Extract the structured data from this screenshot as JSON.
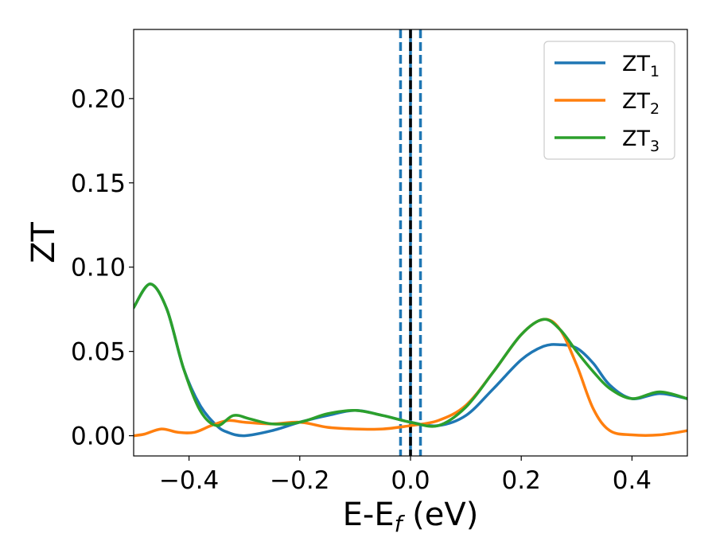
{
  "chart_data": {
    "type": "line",
    "title": "",
    "xlabel": "E-E",
    "xlabel_sub": "f",
    "xlabel_unit": " (eV)",
    "ylabel": "ZT",
    "xlim": [
      -0.5,
      0.5
    ],
    "ylim": [
      -0.012,
      0.241
    ],
    "x_ticks": [
      -0.4,
      -0.2,
      0.0,
      0.2,
      0.4
    ],
    "x_tick_labels": [
      "−0.4",
      "−0.2",
      "0.0",
      "0.2",
      "0.4"
    ],
    "y_ticks": [
      0.0,
      0.05,
      0.1,
      0.15,
      0.2
    ],
    "y_tick_labels": [
      "0.00",
      "0.05",
      "0.10",
      "0.15",
      "0.20"
    ],
    "grid": false,
    "legend_position": "top-right",
    "series": [
      {
        "name": "ZT",
        "subscript": "1",
        "color": "#1f77b4",
        "x": [
          -0.5,
          -0.47,
          -0.44,
          -0.41,
          -0.38,
          -0.35,
          -0.33,
          -0.3,
          -0.25,
          -0.2,
          -0.15,
          -0.1,
          -0.05,
          0.0,
          0.05,
          0.1,
          0.15,
          0.2,
          0.24,
          0.27,
          0.3,
          0.33,
          0.36,
          0.4,
          0.45,
          0.5
        ],
        "y": [
          0.076,
          0.09,
          0.075,
          0.04,
          0.018,
          0.006,
          0.002,
          0.0,
          0.003,
          0.008,
          0.012,
          0.015,
          0.012,
          0.008,
          0.006,
          0.012,
          0.028,
          0.045,
          0.053,
          0.054,
          0.052,
          0.043,
          0.03,
          0.022,
          0.025,
          0.022
        ]
      },
      {
        "name": "ZT",
        "subscript": "2",
        "color": "#ff7f0e",
        "x": [
          -0.5,
          -0.48,
          -0.45,
          -0.42,
          -0.39,
          -0.36,
          -0.33,
          -0.3,
          -0.25,
          -0.2,
          -0.15,
          -0.1,
          -0.05,
          0.0,
          0.05,
          0.1,
          0.15,
          0.2,
          0.24,
          0.27,
          0.3,
          0.33,
          0.36,
          0.4,
          0.45,
          0.5
        ],
        "y": [
          0.0,
          0.001,
          0.004,
          0.002,
          0.002,
          0.006,
          0.009,
          0.008,
          0.007,
          0.008,
          0.005,
          0.004,
          0.004,
          0.006,
          0.009,
          0.018,
          0.038,
          0.06,
          0.069,
          0.063,
          0.042,
          0.016,
          0.003,
          0.0005,
          0.0005,
          0.003
        ]
      },
      {
        "name": "ZT",
        "subscript": "3",
        "color": "#2ca02c",
        "x": [
          -0.5,
          -0.47,
          -0.44,
          -0.41,
          -0.38,
          -0.35,
          -0.32,
          -0.29,
          -0.25,
          -0.2,
          -0.15,
          -0.1,
          -0.05,
          0.0,
          0.05,
          0.1,
          0.15,
          0.2,
          0.24,
          0.27,
          0.3,
          0.33,
          0.36,
          0.4,
          0.45,
          0.5
        ],
        "y": [
          0.076,
          0.09,
          0.075,
          0.04,
          0.015,
          0.006,
          0.012,
          0.01,
          0.007,
          0.008,
          0.013,
          0.015,
          0.012,
          0.008,
          0.006,
          0.017,
          0.038,
          0.06,
          0.069,
          0.063,
          0.05,
          0.038,
          0.028,
          0.022,
          0.026,
          0.022
        ]
      }
    ],
    "vertical_lines": [
      {
        "x": -0.018,
        "color": "#1f77b4",
        "style": "dashed"
      },
      {
        "x": 0.0,
        "color": "#1f77b4",
        "style": "solid"
      },
      {
        "x": 0.0,
        "color": "#000000",
        "style": "dashed"
      },
      {
        "x": 0.018,
        "color": "#1f77b4",
        "style": "dashed"
      }
    ]
  }
}
